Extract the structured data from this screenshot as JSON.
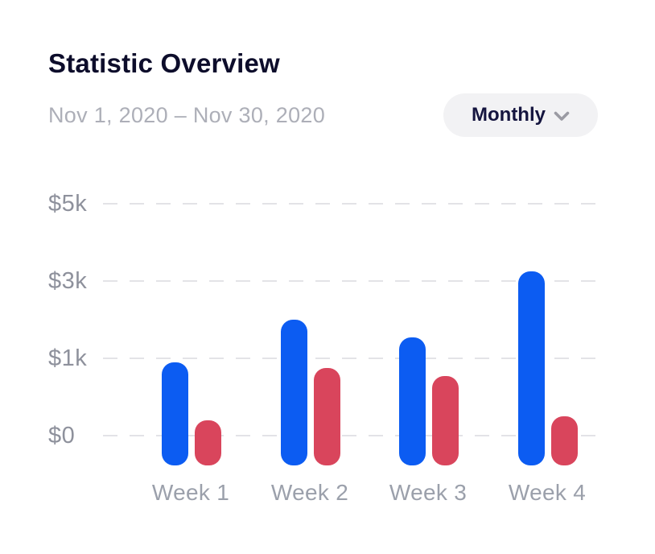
{
  "header": {
    "title": "Statistic Overview",
    "date_range": "Nov 1, 2020 – Nov 30, 2020",
    "period_selector": {
      "label": "Monthly",
      "icon": "chevron-down"
    }
  },
  "chart_data": {
    "type": "bar",
    "title": "Statistic Overview",
    "subtitle": "Nov 1, 2020 – Nov 30, 2020",
    "categories": [
      "Week 1",
      "Week 2",
      "Week 3",
      "Week 4"
    ],
    "series": [
      {
        "name": "blue",
        "color": "#0C5CF2",
        "values": [
          950,
          2000,
          1550,
          3250
        ]
      },
      {
        "name": "red",
        "color": "#D9455C",
        "values": [
          200,
          875,
          775,
          250
        ]
      }
    ],
    "y_ticks": [
      {
        "label": "$5k",
        "value": 5000
      },
      {
        "label": "$3k",
        "value": 3000
      },
      {
        "label": "$1k",
        "value": 1000
      },
      {
        "label": "$0",
        "value": 0
      }
    ],
    "ylim": [
      0,
      5000
    ],
    "grid": "dashed-horizontal",
    "legend": "none"
  },
  "colors": {
    "title": "#0D0D2B",
    "subtitle": "#ADAFB8",
    "axis_label": "#8E919C",
    "gridline": "#E3E3E7",
    "pill_bg": "#F2F2F4",
    "pill_text": "#15153F",
    "chevron": "#9B9BA3",
    "bar_blue": "#0C5CF2",
    "bar_red": "#D9455C"
  }
}
